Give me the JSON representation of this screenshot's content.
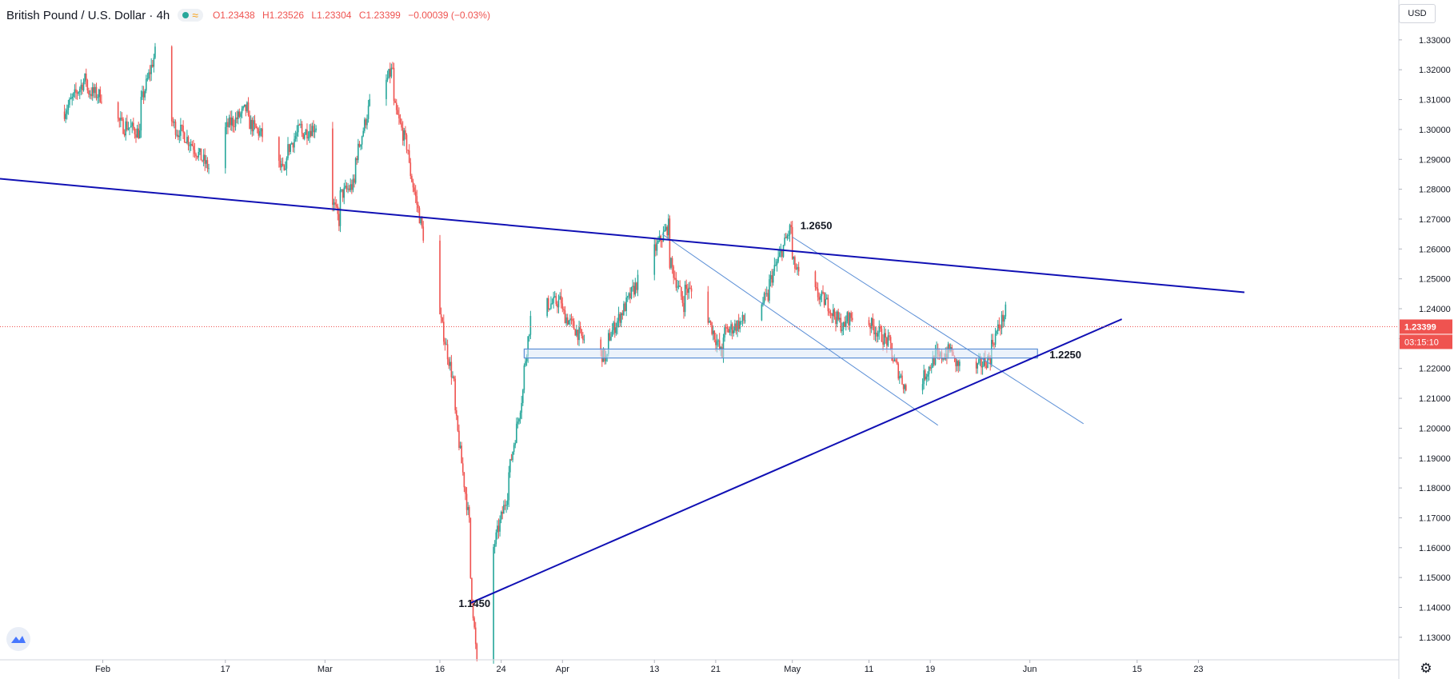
{
  "legend": {
    "symbol_title": "British Pound / U.S. Dollar · 4h",
    "ohlc": {
      "open": "O1.23438",
      "high": "H1.23526",
      "low": "L1.23304",
      "close": "C1.23399",
      "change": "−0.00039 (−0.03%)"
    }
  },
  "price_scale": {
    "currency": "USD",
    "last_price": "1.23399",
    "countdown": "03:15:10"
  },
  "colors": {
    "up": "#26a69a",
    "down": "#ef5350",
    "trendline": "#1010b4",
    "channel": "#5b8fd6",
    "zone_fill": "#dbe8f8"
  },
  "icons": [
    "tradingview-logo-icon",
    "status-dot-icon",
    "wave-icon",
    "settings-gear-icon"
  ],
  "chart_data": {
    "type": "candlestick",
    "title": "British Pound / U.S. Dollar",
    "interval": "4h",
    "ylim": [
      1.125,
      1.345
    ],
    "y_ticks": [
      "1.13000",
      "1.14000",
      "1.15000",
      "1.16000",
      "1.17000",
      "1.18000",
      "1.19000",
      "1.20000",
      "1.21000",
      "1.22000",
      "1.23000",
      "1.24000",
      "1.25000",
      "1.26000",
      "1.27000",
      "1.28000",
      "1.29000",
      "1.30000",
      "1.31000",
      "1.32000",
      "1.33000"
    ],
    "x_ticks": [
      "Feb",
      "17",
      "Mar",
      "16",
      "24",
      "Apr",
      "13",
      "21",
      "May",
      "11",
      "19",
      "Jun",
      "15",
      "23"
    ],
    "grid": false,
    "price_path": [
      {
        "date": "Jan 27",
        "price": 1.306
      },
      {
        "date": "Jan 29",
        "price": 1.314
      },
      {
        "date": "Jan 31",
        "price": 1.312
      },
      {
        "date": "Feb 3",
        "price": 1.303
      },
      {
        "date": "Feb 5",
        "price": 1.3
      },
      {
        "date": "Feb 7",
        "price": 1.318
      },
      {
        "date": "Feb 10",
        "price": 1.303
      },
      {
        "date": "Feb 12",
        "price": 1.297
      },
      {
        "date": "Feb 14",
        "price": 1.29
      },
      {
        "date": "Feb 17",
        "price": 1.3
      },
      {
        "date": "Feb 19",
        "price": 1.305
      },
      {
        "date": "Feb 21",
        "price": 1.3
      },
      {
        "date": "Feb 24",
        "price": 1.288
      },
      {
        "date": "Feb 26",
        "price": 1.297
      },
      {
        "date": "Feb 28",
        "price": 1.3
      },
      {
        "date": "Mar 2",
        "price": 1.276
      },
      {
        "date": "Mar 4",
        "price": 1.28
      },
      {
        "date": "Mar 6",
        "price": 1.3
      },
      {
        "date": "Mar 9",
        "price": 1.316
      },
      {
        "date": "Mar 11",
        "price": 1.3
      },
      {
        "date": "Mar 13",
        "price": 1.275
      },
      {
        "date": "Mar 15",
        "price": 1.25
      },
      {
        "date": "Mar 17",
        "price": 1.225
      },
      {
        "date": "Mar 19",
        "price": 1.185
      },
      {
        "date": "Mar 20",
        "price": 1.15
      },
      {
        "date": "Mar 21",
        "price": 1.165
      },
      {
        "date": "Mar 22",
        "price": 1.15
      },
      {
        "date": "Mar 24",
        "price": 1.17
      },
      {
        "date": "Mar 26",
        "price": 1.2
      },
      {
        "date": "Mar 28",
        "price": 1.24
      },
      {
        "date": "Mar 31",
        "price": 1.242
      },
      {
        "date": "Apr 3",
        "price": 1.232
      },
      {
        "date": "Apr 6",
        "price": 1.225
      },
      {
        "date": "Apr 9",
        "price": 1.24
      },
      {
        "date": "Apr 12",
        "price": 1.255
      },
      {
        "date": "Apr 14",
        "price": 1.264
      },
      {
        "date": "Apr 16",
        "price": 1.248
      },
      {
        "date": "Apr 19",
        "price": 1.244
      },
      {
        "date": "Apr 21",
        "price": 1.23
      },
      {
        "date": "Apr 24",
        "price": 1.235
      },
      {
        "date": "Apr 27",
        "price": 1.242
      },
      {
        "date": "Apr 30",
        "price": 1.262
      },
      {
        "date": "May 2",
        "price": 1.25
      },
      {
        "date": "May 5",
        "price": 1.243
      },
      {
        "date": "May 7",
        "price": 1.236
      },
      {
        "date": "May 10",
        "price": 1.238
      },
      {
        "date": "May 13",
        "price": 1.23
      },
      {
        "date": "May 15",
        "price": 1.218
      },
      {
        "date": "May 17",
        "price": 1.212
      },
      {
        "date": "May 19",
        "price": 1.221
      },
      {
        "date": "May 21",
        "price": 1.225
      },
      {
        "date": "May 24",
        "price": 1.218
      },
      {
        "date": "May 26",
        "price": 1.222
      },
      {
        "date": "May 28",
        "price": 1.234
      }
    ],
    "annotations": [
      {
        "text": "1.2650",
        "price": 1.265,
        "date": "May 1"
      },
      {
        "text": "1.2250",
        "price": 1.225,
        "date": "Jun 2"
      },
      {
        "text": "1.1450",
        "price": 1.145,
        "date": "Mar 20"
      }
    ],
    "trendlines": [
      {
        "name": "descending-resistance",
        "from": {
          "date": "Jan 27",
          "price": 1.2835
        },
        "to": {
          "date": "Jun 29",
          "price": 1.2455
        }
      },
      {
        "name": "ascending-support",
        "from": {
          "date": "Mar 20",
          "price": 1.1415
        },
        "to": {
          "date": "Jun 13",
          "price": 1.2365
        }
      }
    ],
    "channel": [
      {
        "from": {
          "date": "Apr 14",
          "price": 1.265
        },
        "to": {
          "date": "May 20",
          "price": 1.201
        }
      },
      {
        "from": {
          "date": "May 1",
          "price": 1.264
        },
        "to": {
          "date": "Jun 8",
          "price": 1.2015
        }
      }
    ],
    "zone": {
      "top": 1.2265,
      "bottom": 1.2235,
      "from": "Mar 27",
      "to": "Jun 2"
    },
    "current_price_line": 1.23399
  }
}
